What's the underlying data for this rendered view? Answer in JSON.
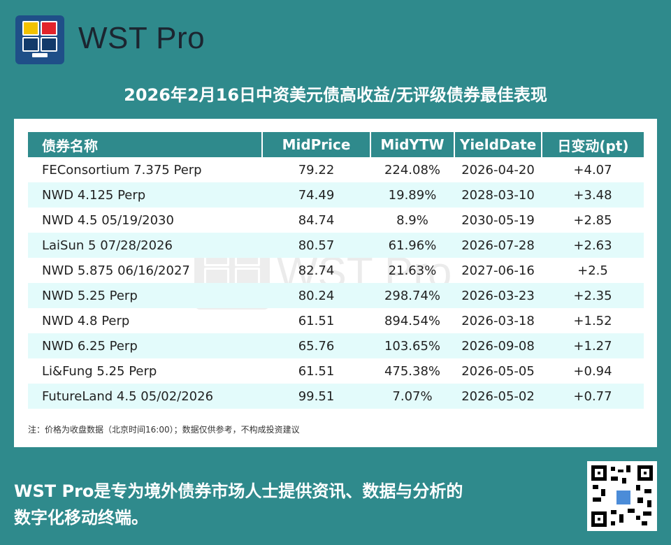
{
  "brand": {
    "name": "WST Pro"
  },
  "title": "2026年2月16日中资美元债高收益/无评级债券最佳表现",
  "table": {
    "headers": [
      "债券名称",
      "MidPrice",
      "MidYTW",
      "YieldDate",
      "日变动(pt)"
    ],
    "rows": [
      [
        "FEConsortium 7.375 Perp",
        "79.22",
        "224.08%",
        "2026-04-20",
        "+4.07"
      ],
      [
        "NWD 4.125 Perp",
        "74.49",
        "19.89%",
        "2028-03-10",
        "+3.48"
      ],
      [
        "NWD 4.5 05/19/2030",
        "84.74",
        "8.9%",
        "2030-05-19",
        "+2.85"
      ],
      [
        "LaiSun 5 07/28/2026",
        "80.57",
        "61.96%",
        "2026-07-28",
        "+2.63"
      ],
      [
        "NWD 5.875 06/16/2027",
        "82.74",
        "21.63%",
        "2027-06-16",
        "+2.5"
      ],
      [
        "NWD 5.25 Perp",
        "80.24",
        "298.74%",
        "2026-03-23",
        "+2.35"
      ],
      [
        "NWD 4.8 Perp",
        "61.51",
        "894.54%",
        "2026-03-18",
        "+1.52"
      ],
      [
        "NWD 6.25 Perp",
        "65.76",
        "103.65%",
        "2026-09-08",
        "+1.27"
      ],
      [
        "Li&Fung 5.25 Perp",
        "61.51",
        "475.38%",
        "2026-05-05",
        "+0.94"
      ],
      [
        "FutureLand 4.5 05/02/2026",
        "99.51",
        "7.07%",
        "2026-05-02",
        "+0.77"
      ]
    ]
  },
  "note": "注：价格为收盘数据（北京时间16:00）；数据仅供参考，不构成投资建议",
  "watermark": "WST Pro",
  "footer": {
    "line1": "WST Pro是专为境外债券市场人士提供资讯、数据与分析的",
    "line2": "数字化移动终端。"
  },
  "colors": {
    "teal": "#2f8a8c",
    "row_alt": "#e3fbfb",
    "logo_bg": "#1f4f88"
  }
}
